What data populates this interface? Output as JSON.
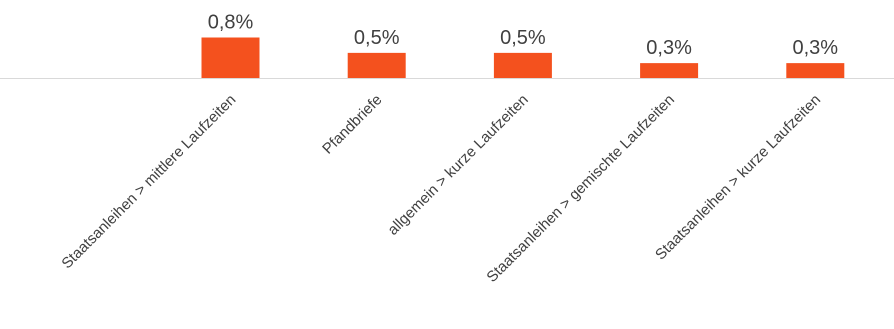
{
  "chart_data": {
    "type": "bar",
    "categories": [
      "Staatsanleihen > mittlere Laufzeiten",
      "Pfandbriefe",
      "allgemein > kurze Laufzeiten",
      "Staatsanleihen > gemischte Laufzeiten",
      "Staatsanleihen > kurze Laufzeiten"
    ],
    "values": [
      0.8,
      0.5,
      0.5,
      0.3,
      0.3
    ],
    "value_labels": [
      "0,8%",
      "0,5%",
      "0,5%",
      "0,3%",
      "0,3%"
    ],
    "title": "",
    "xlabel": "",
    "ylabel": "",
    "ylim": [
      0,
      0.8
    ],
    "grid": false,
    "legend": "none",
    "bar_color": "#F4511E",
    "axis_color": "#D9D9D9",
    "text_color": "#404040"
  }
}
